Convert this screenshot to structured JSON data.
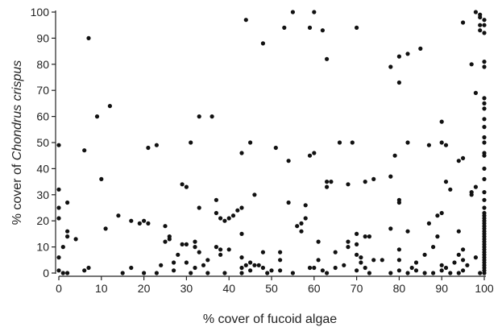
{
  "chart_data": {
    "type": "scatter",
    "xlabel": "% cover of fucoid algae",
    "ylabel_prefix": "% cover of ",
    "ylabel_species": "Chondrus crispus",
    "xlim": [
      0,
      100
    ],
    "ylim": [
      0,
      100
    ],
    "xticks": [
      "0",
      "10",
      "20",
      "30",
      "40",
      "50",
      "60",
      "70",
      "80",
      "90",
      "100"
    ],
    "yticks": [
      "0",
      "10",
      "20",
      "30",
      "40",
      "50",
      "60",
      "70",
      "80",
      "90",
      "100"
    ],
    "grid": false,
    "legend": "none",
    "marker_color": "#111111",
    "points": [
      [
        0,
        49
      ],
      [
        0,
        32
      ],
      [
        0,
        25
      ],
      [
        0,
        21
      ],
      [
        0,
        6
      ],
      [
        0,
        1
      ],
      [
        1,
        10
      ],
      [
        1,
        0
      ],
      [
        2,
        27
      ],
      [
        2,
        16
      ],
      [
        2,
        14
      ],
      [
        2,
        0
      ],
      [
        4,
        13
      ],
      [
        6,
        47
      ],
      [
        6,
        1
      ],
      [
        7,
        90
      ],
      [
        7,
        2
      ],
      [
        9,
        60
      ],
      [
        10,
        36
      ],
      [
        11,
        17
      ],
      [
        12,
        64
      ],
      [
        14,
        22
      ],
      [
        15,
        0
      ],
      [
        17,
        20
      ],
      [
        17,
        2
      ],
      [
        19,
        19
      ],
      [
        20,
        20
      ],
      [
        20,
        0
      ],
      [
        21,
        19
      ],
      [
        21,
        48
      ],
      [
        23,
        49
      ],
      [
        23,
        0
      ],
      [
        24,
        3
      ],
      [
        25,
        18
      ],
      [
        25,
        12
      ],
      [
        26,
        14
      ],
      [
        26,
        13
      ],
      [
        27,
        1
      ],
      [
        27,
        4
      ],
      [
        28,
        7
      ],
      [
        29,
        34
      ],
      [
        29,
        11
      ],
      [
        30,
        33
      ],
      [
        30,
        11
      ],
      [
        30,
        4
      ],
      [
        31,
        50
      ],
      [
        31,
        0
      ],
      [
        32,
        12
      ],
      [
        32,
        10
      ],
      [
        32,
        2
      ],
      [
        33,
        60
      ],
      [
        33,
        25
      ],
      [
        33,
        8
      ],
      [
        34,
        3
      ],
      [
        35,
        0
      ],
      [
        35,
        5
      ],
      [
        36,
        60
      ],
      [
        37,
        28
      ],
      [
        37,
        10
      ],
      [
        37,
        23
      ],
      [
        38,
        21
      ],
      [
        38,
        7
      ],
      [
        38,
        9
      ],
      [
        39,
        20
      ],
      [
        39,
        0
      ],
      [
        40,
        21
      ],
      [
        40,
        9
      ],
      [
        41,
        22
      ],
      [
        42,
        24
      ],
      [
        43,
        46
      ],
      [
        43,
        25
      ],
      [
        43,
        15
      ],
      [
        43,
        6
      ],
      [
        43,
        2
      ],
      [
        43,
        0
      ],
      [
        44,
        97
      ],
      [
        44,
        3
      ],
      [
        45,
        50
      ],
      [
        45,
        1
      ],
      [
        45,
        4
      ],
      [
        46,
        30
      ],
      [
        46,
        3
      ],
      [
        47,
        3
      ],
      [
        48,
        88
      ],
      [
        48,
        8
      ],
      [
        48,
        2
      ],
      [
        49,
        0
      ],
      [
        50,
        1
      ],
      [
        51,
        48
      ],
      [
        52,
        5
      ],
      [
        52,
        8
      ],
      [
        52,
        1
      ],
      [
        53,
        94
      ],
      [
        54,
        43
      ],
      [
        54,
        27
      ],
      [
        55,
        100
      ],
      [
        55,
        0
      ],
      [
        56,
        18
      ],
      [
        57,
        16
      ],
      [
        57,
        19
      ],
      [
        58,
        26
      ],
      [
        58,
        21
      ],
      [
        59,
        45
      ],
      [
        59,
        94
      ],
      [
        59,
        2
      ],
      [
        60,
        46
      ],
      [
        60,
        100
      ],
      [
        60,
        2
      ],
      [
        61,
        12
      ],
      [
        61,
        5
      ],
      [
        62,
        93
      ],
      [
        62,
        1
      ],
      [
        63,
        82
      ],
      [
        63,
        35
      ],
      [
        63,
        33
      ],
      [
        63,
        0
      ],
      [
        64,
        35
      ],
      [
        65,
        8
      ],
      [
        65,
        2
      ],
      [
        66,
        50
      ],
      [
        67,
        3
      ],
      [
        68,
        34
      ],
      [
        68,
        12
      ],
      [
        68,
        10
      ],
      [
        69,
        50
      ],
      [
        70,
        94
      ],
      [
        70,
        15
      ],
      [
        70,
        11
      ],
      [
        70,
        7
      ],
      [
        70,
        1
      ],
      [
        71,
        6
      ],
      [
        71,
        4
      ],
      [
        72,
        35
      ],
      [
        72,
        14
      ],
      [
        72,
        2
      ],
      [
        73,
        14
      ],
      [
        73,
        0
      ],
      [
        74,
        36
      ],
      [
        74,
        5
      ],
      [
        76,
        5
      ],
      [
        78,
        79
      ],
      [
        78,
        37
      ],
      [
        78,
        17
      ],
      [
        78,
        0
      ],
      [
        79,
        45
      ],
      [
        80,
        83
      ],
      [
        80,
        73
      ],
      [
        80,
        27
      ],
      [
        80,
        28
      ],
      [
        80,
        9
      ],
      [
        80,
        5
      ],
      [
        80,
        1
      ],
      [
        82,
        84
      ],
      [
        82,
        50
      ],
      [
        82,
        16
      ],
      [
        82,
        0
      ],
      [
        83,
        2
      ],
      [
        84,
        1
      ],
      [
        84,
        4
      ],
      [
        85,
        86
      ],
      [
        86,
        7
      ],
      [
        86,
        0
      ],
      [
        87,
        49
      ],
      [
        87,
        19
      ],
      [
        88,
        10
      ],
      [
        88,
        0
      ],
      [
        89,
        22
      ],
      [
        89,
        14
      ],
      [
        90,
        58
      ],
      [
        90,
        50
      ],
      [
        90,
        23
      ],
      [
        90,
        3
      ],
      [
        90,
        1
      ],
      [
        91,
        49
      ],
      [
        91,
        35
      ],
      [
        91,
        2
      ],
      [
        92,
        32
      ],
      [
        92,
        0
      ],
      [
        93,
        4
      ],
      [
        94,
        43
      ],
      [
        94,
        16
      ],
      [
        94,
        7
      ],
      [
        94,
        0
      ],
      [
        95,
        96
      ],
      [
        95,
        44
      ],
      [
        95,
        9
      ],
      [
        95,
        5
      ],
      [
        95,
        1
      ],
      [
        96,
        3
      ],
      [
        97,
        31
      ],
      [
        97,
        30
      ],
      [
        97,
        80
      ],
      [
        98,
        100
      ],
      [
        98,
        69
      ],
      [
        98,
        33
      ],
      [
        98,
        6
      ],
      [
        99,
        99
      ],
      [
        99,
        98
      ],
      [
        99,
        95
      ],
      [
        99,
        93
      ],
      [
        99,
        0
      ],
      [
        100,
        97
      ],
      [
        100,
        95
      ],
      [
        100,
        92
      ],
      [
        100,
        81
      ],
      [
        100,
        79
      ],
      [
        100,
        67
      ],
      [
        100,
        65
      ],
      [
        100,
        63
      ],
      [
        100,
        59
      ],
      [
        100,
        56
      ],
      [
        100,
        52
      ],
      [
        100,
        50
      ],
      [
        100,
        46
      ],
      [
        100,
        45
      ],
      [
        100,
        40
      ],
      [
        100,
        36
      ],
      [
        100,
        31
      ],
      [
        100,
        28
      ],
      [
        100,
        25
      ],
      [
        100,
        23
      ],
      [
        100,
        22
      ],
      [
        100,
        21
      ],
      [
        100,
        20
      ],
      [
        100,
        19
      ],
      [
        100,
        18
      ],
      [
        100,
        17
      ],
      [
        100,
        16
      ],
      [
        100,
        15
      ],
      [
        100,
        14
      ],
      [
        100,
        13
      ],
      [
        100,
        12
      ],
      [
        100,
        11
      ],
      [
        100,
        10
      ],
      [
        100,
        9
      ],
      [
        100,
        8
      ],
      [
        100,
        7
      ],
      [
        100,
        6
      ],
      [
        100,
        5
      ],
      [
        100,
        4
      ],
      [
        100,
        3
      ],
      [
        100,
        2
      ],
      [
        100,
        1
      ],
      [
        100,
        0
      ]
    ]
  }
}
